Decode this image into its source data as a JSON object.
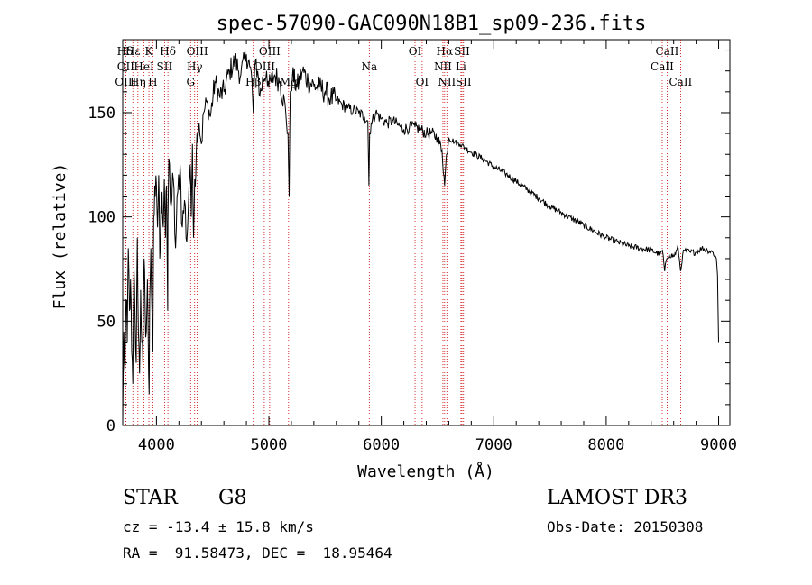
{
  "chart_data": {
    "type": "line",
    "title": "spec-57090-GAC090N18B1_sp09-236.fits",
    "xlabel": "Wavelength (Å)",
    "ylabel": "Flux (relative)",
    "xlim": [
      3700,
      9100
    ],
    "ylim": [
      0,
      185
    ],
    "x_ticks": [
      4000,
      5000,
      6000,
      7000,
      8000,
      9000
    ],
    "y_ticks": [
      0,
      50,
      100,
      150
    ],
    "grid": false,
    "series": [
      {
        "name": "spectrum",
        "x": [
          3700,
          3710,
          3720,
          3730,
          3740,
          3750,
          3760,
          3770,
          3780,
          3790,
          3800,
          3810,
          3820,
          3830,
          3840,
          3850,
          3860,
          3870,
          3880,
          3890,
          3900,
          3910,
          3920,
          3930,
          3935,
          3940,
          3950,
          3960,
          3968,
          3975,
          3990,
          4000,
          4010,
          4020,
          4030,
          4040,
          4050,
          4060,
          4070,
          4080,
          4090,
          4100,
          4102,
          4110,
          4130,
          4150,
          4170,
          4190,
          4210,
          4230,
          4250,
          4270,
          4290,
          4300,
          4310,
          4320,
          4330,
          4340,
          4350,
          4360,
          4380,
          4400,
          4420,
          4450,
          4480,
          4520,
          4560,
          4600,
          4650,
          4700,
          4750,
          4800,
          4830,
          4850,
          4861,
          4880,
          4900,
          4920,
          4950,
          4980,
          5000,
          5050,
          5100,
          5150,
          5170,
          5180,
          5190,
          5210,
          5250,
          5300,
          5350,
          5400,
          5450,
          5500,
          5550,
          5600,
          5650,
          5700,
          5750,
          5800,
          5850,
          5880,
          5890,
          5896,
          5910,
          5950,
          6000,
          6050,
          6100,
          6150,
          6200,
          6250,
          6300,
          6350,
          6400,
          6450,
          6500,
          6540,
          6563,
          6580,
          6600,
          6650,
          6700,
          6750,
          6800,
          6900,
          7000,
          7100,
          7200,
          7300,
          7400,
          7500,
          7600,
          7700,
          7800,
          7900,
          8000,
          8100,
          8200,
          8300,
          8400,
          8480,
          8500,
          8520,
          8540,
          8560,
          8600,
          8640,
          8662,
          8680,
          8700,
          8750,
          8800,
          8850,
          8900,
          8950,
          8980,
          8990,
          9000
        ],
        "values": [
          2,
          45,
          25,
          60,
          40,
          85,
          55,
          70,
          35,
          20,
          75,
          50,
          30,
          90,
          45,
          25,
          65,
          40,
          30,
          80,
          55,
          45,
          70,
          25,
          15,
          60,
          85,
          55,
          35,
          100,
          110,
          115,
          95,
          120,
          80,
          105,
          112,
          95,
          118,
          90,
          115,
          55,
          98,
          128,
          105,
          118,
          85,
          112,
          125,
          95,
          108,
          88,
          115,
          125,
          100,
          135,
          90,
          118,
          120,
          140,
          145,
          135,
          150,
          155,
          148,
          165,
          158,
          160,
          170,
          175,
          168,
          178,
          172,
          165,
          150,
          175,
          170,
          158,
          166,
          170,
          162,
          168,
          165,
          150,
          140,
          110,
          160,
          168,
          162,
          170,
          165,
          163,
          162,
          160,
          157,
          156,
          154,
          152,
          151,
          150,
          148,
          146,
          115,
          140,
          145,
          150,
          147,
          145,
          146,
          144,
          142,
          143,
          143,
          142,
          140,
          140,
          138,
          132,
          115,
          130,
          138,
          136,
          135,
          133,
          131,
          128,
          124,
          121,
          117,
          113,
          109,
          105,
          102,
          99,
          96,
          93,
          90,
          88,
          86,
          85,
          84,
          82,
          84,
          74,
          80,
          82,
          81,
          85,
          74,
          82,
          84,
          83,
          83,
          85,
          84,
          83,
          80,
          72,
          40
        ]
      }
    ],
    "lines": [
      {
        "label": "Hδ",
        "row": 1,
        "wl": 3720
      },
      {
        "label": "Hε",
        "row": 1,
        "wl": 3790
      },
      {
        "label": "K",
        "row": 1,
        "wl": 3933
      },
      {
        "label": "Hδ",
        "row": 1,
        "wl": 4102
      },
      {
        "label": "OIII",
        "row": 1,
        "wl": 4363
      },
      {
        "label": "OIII",
        "row": 1,
        "wl": 5007
      },
      {
        "label": "OI",
        "row": 1,
        "wl": 6300
      },
      {
        "label": "Hα",
        "row": 1,
        "wl": 6563
      },
      {
        "label": "SII",
        "row": 1,
        "wl": 6717
      },
      {
        "label": "CaII",
        "row": 1,
        "wl": 8542
      },
      {
        "label": "OII",
        "row": 2,
        "wl": 3727
      },
      {
        "label": "HeI",
        "row": 2,
        "wl": 3889
      },
      {
        "label": "SII",
        "row": 2,
        "wl": 4072
      },
      {
        "label": "Hγ",
        "row": 2,
        "wl": 4340
      },
      {
        "label": "OIII",
        "row": 2,
        "wl": 4959
      },
      {
        "label": "Na",
        "row": 2,
        "wl": 5893
      },
      {
        "label": "NII",
        "row": 2,
        "wl": 6548
      },
      {
        "label": "Li",
        "row": 2,
        "wl": 6708
      },
      {
        "label": "CaII",
        "row": 2,
        "wl": 8498
      },
      {
        "label": "OIII",
        "row": 3,
        "wl": 3727
      },
      {
        "label": "Hη",
        "row": 3,
        "wl": 3835
      },
      {
        "label": "H",
        "row": 3,
        "wl": 3968
      },
      {
        "label": "G",
        "row": 3,
        "wl": 4304
      },
      {
        "label": "Hβ",
        "row": 3,
        "wl": 4861
      },
      {
        "label": "Mg",
        "row": 3,
        "wl": 5175
      },
      {
        "label": "OI",
        "row": 3,
        "wl": 6363
      },
      {
        "label": "NII",
        "row": 3,
        "wl": 6583
      },
      {
        "label": "SII",
        "row": 3,
        "wl": 6731
      },
      {
        "label": "CaII",
        "row": 3,
        "wl": 8662
      }
    ]
  },
  "info": {
    "object_class": "STAR",
    "subclass": "G8",
    "survey": "LAMOST DR3",
    "redshift": "cz = -13.4 ± 15.8 km/s",
    "obs_date": "Obs-Date: 20150308",
    "coords": "RA =  91.58473, DEC =  18.95464"
  }
}
